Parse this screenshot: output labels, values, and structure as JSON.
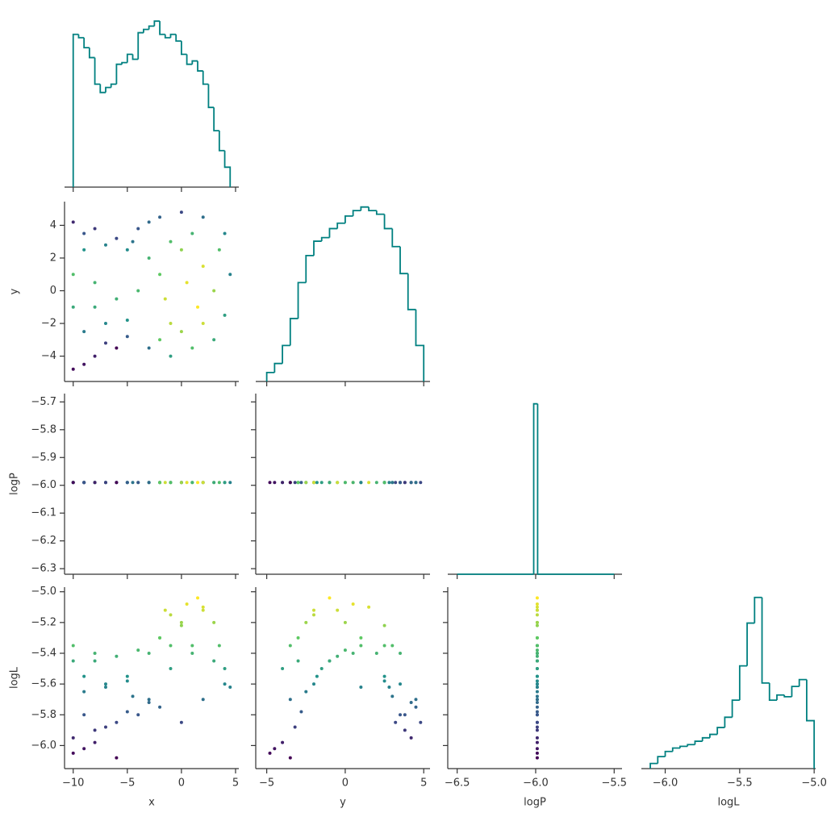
{
  "chart_data": {
    "type": "pairplot",
    "corner": true,
    "colormap": "viridis",
    "color_by": "logL",
    "hist_color": "#008080",
    "variables": [
      "x",
      "y",
      "logP",
      "logL"
    ],
    "axes": {
      "x": {
        "xlim": [
          -10.8,
          5.3
        ],
        "xticks": [
          {
            "value": -10,
            "label": "−10"
          },
          {
            "value": -5,
            "label": "−5"
          },
          0,
          5
        ]
      },
      "y": {
        "xlim": [
          -5.7,
          5.4
        ],
        "xticks": [
          {
            "value": -5,
            "label": "−5"
          },
          0,
          5
        ],
        "ylim": [
          -5.55,
          5.45
        ],
        "yticks": [
          {
            "value": -4,
            "label": "−4"
          },
          {
            "value": -2,
            "label": "−2"
          },
          0,
          2,
          4
        ]
      },
      "logP": {
        "xlim": [
          -6.56,
          -5.45
        ],
        "xticks": [
          {
            "value": -6.5,
            "label": "−6.5"
          },
          {
            "value": -6.0,
            "label": "−6.0"
          },
          {
            "value": -5.5,
            "label": "−5.5"
          }
        ],
        "ylim": [
          -6.32,
          -5.67
        ],
        "yticks": [
          {
            "value": -5.7,
            "label": "−5.7"
          },
          {
            "value": -5.8,
            "label": "−5.8"
          },
          {
            "value": -5.9,
            "label": "−5.9"
          },
          {
            "value": -6.0,
            "label": "−6.0"
          },
          {
            "value": -6.1,
            "label": "−6.1"
          },
          {
            "value": -6.2,
            "label": "−6.2"
          },
          {
            "value": -6.3,
            "label": "−6.3"
          }
        ]
      },
      "logL": {
        "xlim": [
          -6.16,
          -4.99
        ],
        "xticks": [
          {
            "value": -6.0,
            "label": "−6.0"
          },
          {
            "value": -5.5,
            "label": "−5.5"
          },
          {
            "value": -5.0,
            "label": "−5.0"
          }
        ],
        "ylim": [
          -6.15,
          -4.97
        ],
        "yticks": [
          {
            "value": -5.0,
            "label": "−5.0"
          },
          {
            "value": -5.2,
            "label": "−5.2"
          },
          {
            "value": -5.4,
            "label": "−5.4"
          },
          {
            "value": -5.6,
            "label": "−5.6"
          },
          {
            "value": -5.8,
            "label": "−5.8"
          },
          {
            "value": -6.0,
            "label": "−6.0"
          }
        ]
      }
    },
    "histograms": [
      {
        "ylim": [
          0,
          103
        ],
        "bins": [
          -10,
          -9.5,
          -9,
          -8.5,
          -8,
          -7.5,
          -7,
          -6.5,
          -6,
          -5.5,
          -5,
          -4.5,
          -4,
          -3.5,
          -3,
          -2.5,
          -2,
          -1.5,
          -1,
          -0.5,
          0,
          0.5,
          1,
          1.5,
          2,
          2.5,
          3,
          3.5,
          4,
          4.5
        ],
        "counts": [
          92,
          90,
          84,
          78,
          62,
          57,
          60,
          62,
          74,
          75,
          80,
          77,
          93,
          95,
          97,
          100,
          92,
          90,
          92,
          88,
          80,
          74,
          76,
          70,
          62,
          48,
          34,
          22,
          12
        ]
      },
      {
        "ylim": [
          0,
          100
        ],
        "bins": [
          -5,
          -4.5,
          -4,
          -3.5,
          -3,
          -2.5,
          -2,
          -1.5,
          -1,
          -0.5,
          0,
          0.5,
          1,
          1.5,
          2,
          2.5,
          3,
          3.5,
          4,
          4.5,
          5
        ],
        "counts": [
          5,
          10,
          20,
          35,
          55,
          70,
          78,
          80,
          85,
          88,
          92,
          95,
          97,
          95,
          93,
          85,
          75,
          60,
          40,
          20
        ]
      },
      {
        "ylim": [
          0,
          106
        ],
        "bins": [
          -6.5,
          -6.0125,
          -5.9875,
          -5.5
        ],
        "counts": [
          0,
          100,
          0
        ]
      },
      {
        "ylim": [
          0,
          106
        ],
        "bins": [
          -6.1,
          -6.05,
          -6.0,
          -5.95,
          -5.9,
          -5.85,
          -5.8,
          -5.75,
          -5.7,
          -5.65,
          -5.6,
          -5.55,
          -5.5,
          -5.45,
          -5.4,
          -5.35,
          -5.3,
          -5.25,
          -5.2,
          -5.15,
          -5.1,
          -5.05,
          -5.0
        ],
        "counts": [
          3,
          7,
          10,
          12,
          13,
          14,
          16,
          18,
          20,
          24,
          30,
          40,
          60,
          85,
          100,
          50,
          40,
          43,
          42,
          48,
          52,
          28
        ]
      }
    ],
    "samples": {
      "x": [
        1.5,
        0.5,
        2.0,
        -1,
        3,
        0,
        -2,
        -4,
        -6,
        -8,
        -10,
        -10,
        -9,
        -7,
        -5,
        -9,
        -7,
        -5,
        -3,
        -4,
        -10,
        -10,
        -9,
        -8,
        -6,
        -7,
        -5,
        -2,
        0,
        2,
        4,
        4.5,
        4,
        3,
        1,
        -1,
        -2,
        0,
        2,
        1,
        -1,
        -3,
        -8,
        -9,
        -8,
        -6,
        -4.5,
        3.5,
        -3,
        -1.5
      ],
      "y": [
        -1.0,
        0.5,
        1.5,
        -2,
        0,
        2.5,
        1,
        0,
        -0.5,
        0.5,
        1,
        -1,
        2.5,
        2.8,
        2.5,
        -2.5,
        -2,
        -1.8,
        -3.5,
        3.8,
        4.2,
        -4.8,
        -4.5,
        3.8,
        3.2,
        -3.2,
        -2.8,
        4.5,
        4.8,
        4.5,
        3.5,
        1,
        -1.5,
        -3,
        -3.5,
        -4,
        -3,
        -2.5,
        -2,
        3.5,
        3,
        2,
        -1,
        3.5,
        -4,
        -3.5,
        3,
        2.5,
        4.2,
        -0.5
      ],
      "logP": [
        -5.99,
        -5.99,
        -5.99,
        -5.99,
        -5.99,
        -5.99,
        -5.99,
        -5.99,
        -5.99,
        -5.99,
        -5.99,
        -5.99,
        -5.99,
        -5.99,
        -5.99,
        -5.99,
        -5.99,
        -5.99,
        -5.99,
        -5.99,
        -5.99,
        -5.99,
        -5.99,
        -5.99,
        -5.99,
        -5.99,
        -5.99,
        -5.99,
        -5.99,
        -5.99,
        -5.99,
        -5.99,
        -5.99,
        -5.99,
        -5.99,
        -5.99,
        -5.99,
        -5.99,
        -5.99,
        -5.99,
        -5.99,
        -5.99,
        -5.99,
        -5.99,
        -5.99,
        -5.99,
        -5.99,
        -5.99,
        -5.99,
        -5.99
      ],
      "logL": [
        -5.04,
        -5.08,
        -5.1,
        -5.15,
        -5.2,
        -5.22,
        -5.3,
        -5.38,
        -5.42,
        -5.4,
        -5.35,
        -5.45,
        -5.55,
        -5.62,
        -5.58,
        -5.65,
        -5.6,
        -5.55,
        -5.7,
        -5.8,
        -5.95,
        -6.05,
        -6.02,
        -5.9,
        -5.85,
        -5.88,
        -5.78,
        -5.75,
        -5.85,
        -5.7,
        -5.6,
        -5.62,
        -5.5,
        -5.45,
        -5.35,
        -5.5,
        -5.3,
        -5.2,
        -5.12,
        -5.4,
        -5.35,
        -5.4,
        -5.45,
        -5.8,
        -5.98,
        -6.08,
        -5.68,
        -5.35,
        -5.72,
        -5.12
      ]
    }
  }
}
